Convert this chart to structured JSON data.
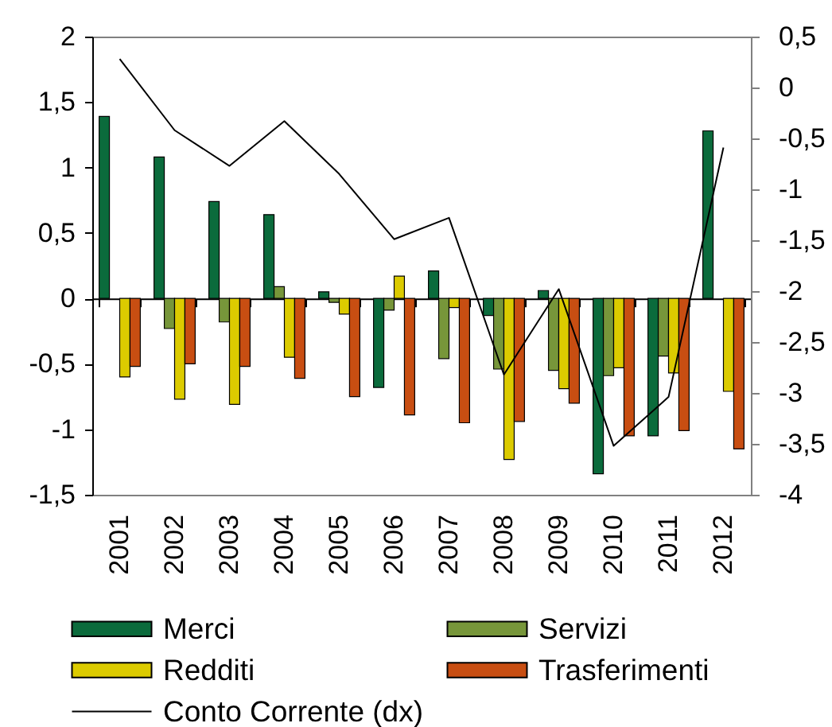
{
  "chart_data": {
    "type": "bar",
    "categories": [
      "2001",
      "2002",
      "2003",
      "2004",
      "2005",
      "2006",
      "2007",
      "2008",
      "2009",
      "2010",
      "2011",
      "2012"
    ],
    "series": [
      {
        "name": "Merci",
        "color": "#0b6b3c",
        "values": [
          1.39,
          1.08,
          0.74,
          0.64,
          0.05,
          -0.68,
          0.21,
          -0.13,
          0.06,
          -1.34,
          -1.05,
          1.28
        ]
      },
      {
        "name": "Servizi",
        "color": "#77963a",
        "values": [
          null,
          -0.23,
          -0.18,
          0.09,
          -0.03,
          -0.09,
          -0.46,
          -0.54,
          -0.55,
          -0.59,
          -0.44,
          null
        ]
      },
      {
        "name": "Redditi",
        "color": "#dccb00",
        "values": [
          -0.6,
          -0.77,
          -0.81,
          -0.45,
          -0.12,
          0.17,
          -0.07,
          -1.23,
          -0.69,
          -0.53,
          -0.57,
          -0.71
        ]
      },
      {
        "name": "Trasferimenti",
        "color": "#c84e12",
        "values": [
          -0.52,
          -0.5,
          -0.52,
          -0.61,
          -0.75,
          -0.89,
          -0.95,
          -0.94,
          -0.8,
          -1.05,
          -1.01,
          -1.15
        ]
      },
      {
        "name": "Conto Corrente (dx)",
        "type": "line",
        "axis": "y2",
        "color": "#000000",
        "values": [
          0.28,
          -0.42,
          -0.77,
          -0.33,
          -0.85,
          -1.49,
          -1.28,
          -2.82,
          -1.98,
          -3.52,
          -3.04,
          -0.59
        ]
      }
    ],
    "ylim": [
      -1.5,
      2
    ],
    "yticks": [
      2,
      {
        "value": 1.5,
        "label": "1,5"
      },
      1,
      {
        "value": 0.5,
        "label": "0,5"
      },
      0,
      {
        "value": -0.5,
        "label": "-0,5"
      },
      -1,
      {
        "value": -1.5,
        "label": "-1,5"
      }
    ],
    "y2lim": [
      -4,
      0.5
    ],
    "y2ticks": [
      {
        "value": 0.5,
        "label": "0,5"
      },
      0,
      {
        "value": -0.5,
        "label": "-0,5"
      },
      -1,
      {
        "value": -1.5,
        "label": "-1,5"
      },
      -2,
      {
        "value": -2.5,
        "label": "-2,5"
      },
      -3,
      {
        "value": -3.5,
        "label": "-3,5"
      },
      -4
    ],
    "legend": "bottom"
  }
}
